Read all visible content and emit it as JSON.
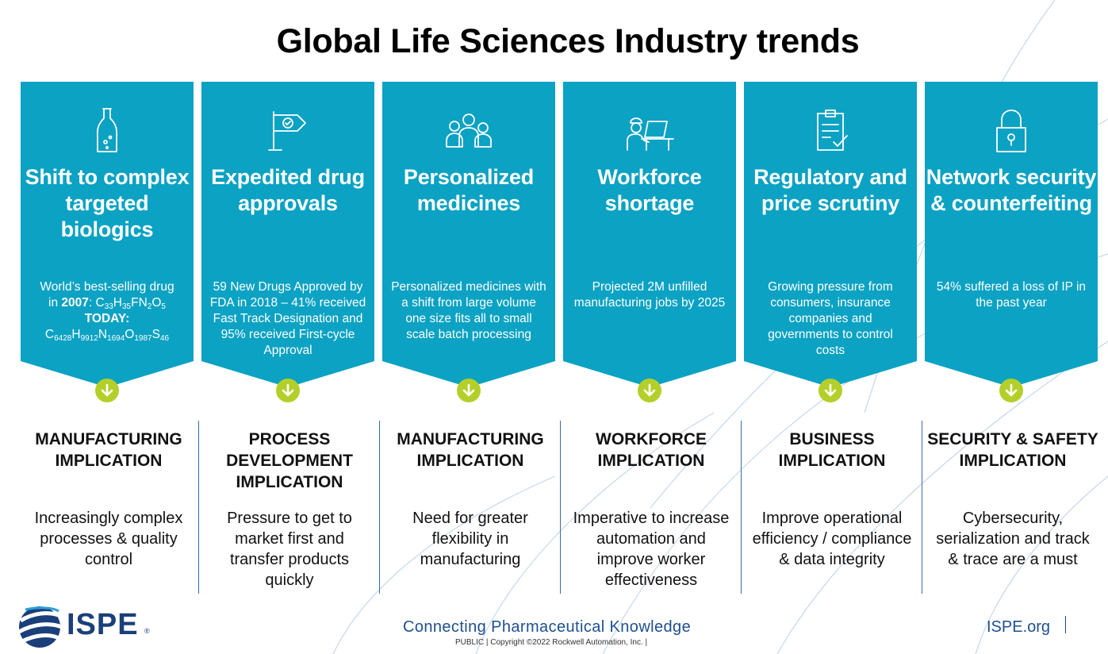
{
  "page": {
    "title": "Global Life Sciences Industry trends"
  },
  "colors": {
    "banner": "#0ba2c3",
    "arrow": "#b5cf2a",
    "accent_blue": "#1e4f8f"
  },
  "trends": [
    {
      "icon": "bottle-icon",
      "title": "Shift to complex targeted biologics",
      "desc_line1": "World’s best-selling drug",
      "desc_in": "in ",
      "desc_year": "2007",
      "desc_colon": ": C",
      "f1_33": "33",
      "f1_h": "H",
      "f1_35": "35",
      "f1_fn": "FN",
      "f1_2": "2",
      "f1_o": "O",
      "f1_5": "5",
      "today": "TODAY:",
      "f2_c": "C",
      "f2_6428": "6428",
      "f2_h": "H",
      "f2_9912": "9912",
      "f2_n": "N",
      "f2_1694": "1694",
      "f2_o": "O",
      "f2_1987": "1987",
      "f2_s": "S",
      "f2_46": "46",
      "impl_title": "MANUFACTURING IMPLICATION",
      "impl_desc": "Increasingly complex processes & quality control"
    },
    {
      "icon": "flag-check-icon",
      "title": "Expedited drug approvals",
      "desc": "59 New Drugs Approved by FDA in 2018 – 41% received Fast Track Designation and 95% received First-cycle Approval",
      "impl_title": "PROCESS DEVELOPMENT IMPLICATION",
      "impl_desc": "Pressure to get to market first and transfer products quickly"
    },
    {
      "icon": "people-group-icon",
      "title": "Personalized medicines",
      "desc": "Personalized medicines with a shift from large volume one size fits all to small scale batch processing",
      "impl_title": "MANUFACTURING IMPLICATION",
      "impl_desc": "Need for greater flexibility in manufacturing"
    },
    {
      "icon": "worker-laptop-icon",
      "title": "Workforce shortage",
      "desc": "Projected 2M unfilled manufacturing jobs by 2025",
      "impl_title": "WORKFORCE IMPLICATION",
      "impl_desc": "Imperative to increase automation and improve worker effectiveness"
    },
    {
      "icon": "clipboard-check-icon",
      "title": "Regulatory and price scrutiny",
      "desc": "Growing pressure from consumers, insurance companies and governments to control costs",
      "impl_title": "BUSINESS IMPLICATION",
      "impl_desc": "Improve operational efficiency / compliance & data integrity"
    },
    {
      "icon": "padlock-icon",
      "title": "Network security & counterfeiting",
      "desc": "54% suffered a loss of IP in the past year",
      "impl_title": "SECURITY & SAFETY IMPLICATION",
      "impl_desc": "Cybersecurity, serialization and track & trace are a must"
    }
  ],
  "footer": {
    "logo": "ISPE",
    "logo_mark": "®",
    "tagline": "Connecting Pharmaceutical Knowledge",
    "copyright": "PUBLIC | Copyright ©2022 Rockwell Automation, Inc. |",
    "site": "ISPE.org"
  }
}
